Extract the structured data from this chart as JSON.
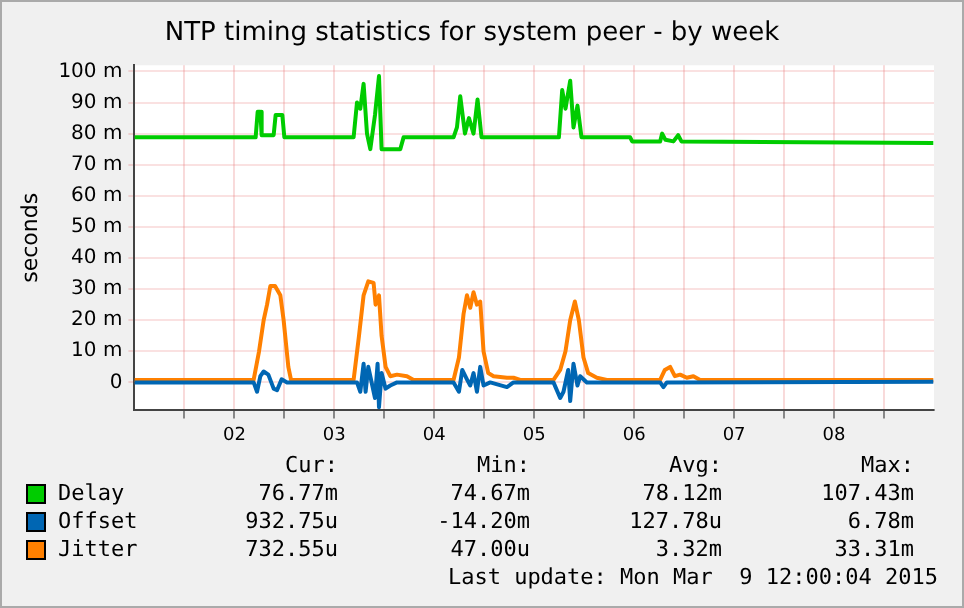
{
  "chart_data": {
    "type": "line",
    "title": "NTP timing statistics for system peer - by week",
    "ylabel": "seconds",
    "xlim": [
      1.5,
      9.5
    ],
    "xticks": [
      {
        "value": 2,
        "label": null
      },
      {
        "value": 2.5,
        "label": "02"
      },
      {
        "value": 3,
        "label": null
      },
      {
        "value": 3.5,
        "label": "03"
      },
      {
        "value": 4,
        "label": null
      },
      {
        "value": 4.5,
        "label": "04"
      },
      {
        "value": 5,
        "label": null
      },
      {
        "value": 5.5,
        "label": "05"
      },
      {
        "value": 6,
        "label": null
      },
      {
        "value": 6.5,
        "label": "06"
      },
      {
        "value": 7,
        "label": null
      },
      {
        "value": 7.5,
        "label": "07"
      },
      {
        "value": 8,
        "label": null
      },
      {
        "value": 8.5,
        "label": "08"
      },
      {
        "value": 9,
        "label": null
      }
    ],
    "ylim": [
      -9,
      102
    ],
    "yticks": [
      {
        "value": 0,
        "label": "0"
      },
      {
        "value": 10,
        "label": "10 m"
      },
      {
        "value": 20,
        "label": "20 m"
      },
      {
        "value": 30,
        "label": "30 m"
      },
      {
        "value": 40,
        "label": "40 m"
      },
      {
        "value": 50,
        "label": "50 m"
      },
      {
        "value": 60,
        "label": "60 m"
      },
      {
        "value": 70,
        "label": "70 m"
      },
      {
        "value": 80,
        "label": "80 m"
      },
      {
        "value": 90,
        "label": "90 m"
      },
      {
        "value": 100,
        "label": "100 m"
      }
    ],
    "grid": true,
    "legend": "bottom",
    "marker": "none",
    "line_style": "solid",
    "series": [
      {
        "name": "Delay",
        "color": "#00cc00",
        "x": [
          1.5,
          2.713,
          2.733,
          2.76,
          2.773,
          2.893,
          2.913,
          2.98,
          3.0,
          3.693,
          3.727,
          3.76,
          3.793,
          3.827,
          3.86,
          3.907,
          3.947,
          3.973,
          4.16,
          4.193,
          4.693,
          4.727,
          4.76,
          4.807,
          4.847,
          4.893,
          4.933,
          4.973,
          5.747,
          5.78,
          5.813,
          5.86,
          5.893,
          5.933,
          5.973,
          6.46,
          6.48,
          6.76,
          6.78,
          6.813,
          6.893,
          6.94,
          6.973,
          9.493
        ],
        "values": [
          78.8,
          78.8,
          87,
          87,
          79.5,
          79.5,
          86,
          86,
          78.8,
          78.8,
          90,
          88,
          96,
          80,
          75,
          86,
          98.5,
          75,
          75,
          78.8,
          78.8,
          82,
          92,
          80,
          85,
          80,
          91,
          78.8,
          78.8,
          94,
          88,
          97,
          82,
          89,
          78.8,
          78.8,
          77.5,
          77.5,
          80,
          78,
          77.5,
          79.5,
          77.5,
          77
        ]
      },
      {
        "name": "Offset",
        "color": "#0066b3",
        "x": [
          1.5,
          2.693,
          2.727,
          2.76,
          2.793,
          2.84,
          2.893,
          2.927,
          2.973,
          3.027,
          3.727,
          3.76,
          3.793,
          3.813,
          3.84,
          3.88,
          3.907,
          3.933,
          3.947,
          3.973,
          4.013,
          4.06,
          4.127,
          4.693,
          4.747,
          4.78,
          4.827,
          4.86,
          4.893,
          4.927,
          4.96,
          4.993,
          5.06,
          5.227,
          5.293,
          5.693,
          5.76,
          5.793,
          5.84,
          5.86,
          5.893,
          5.933,
          5.96,
          6.027,
          6.76,
          6.793,
          6.827,
          9.493
        ],
        "values": [
          0,
          0,
          -3,
          2,
          3.5,
          2.5,
          -2,
          -2.5,
          1,
          0,
          0,
          -3,
          6,
          -3,
          5,
          -1,
          -5,
          6,
          -8,
          3,
          -2,
          -1,
          0,
          0,
          -3,
          4,
          1,
          -1,
          3,
          -3,
          5,
          -1,
          0,
          -1.5,
          0,
          0,
          -5,
          -3,
          4,
          -6,
          6,
          -1,
          2,
          0,
          0,
          -1.5,
          0,
          0.2
        ]
      },
      {
        "name": "Jitter",
        "color": "#ff8000",
        "x": [
          1.5,
          2.693,
          2.747,
          2.793,
          2.827,
          2.86,
          2.907,
          2.96,
          2.993,
          3.04,
          3.067,
          3.693,
          3.747,
          3.793,
          3.84,
          3.893,
          3.913,
          3.947,
          3.973,
          4.013,
          4.06,
          4.127,
          4.227,
          4.293,
          4.693,
          4.747,
          4.793,
          4.827,
          4.86,
          4.893,
          4.927,
          4.96,
          4.993,
          5.04,
          5.093,
          5.227,
          5.293,
          5.36,
          5.693,
          5.76,
          5.813,
          5.86,
          5.907,
          5.947,
          5.993,
          6.04,
          6.127,
          6.227,
          6.76,
          6.807,
          6.86,
          6.907,
          6.96,
          7.027,
          7.093,
          7.16,
          9.493
        ],
        "values": [
          0.8,
          0.8,
          10,
          20,
          25,
          31,
          31,
          28,
          20,
          5,
          0.8,
          0.8,
          15,
          28,
          32.5,
          32,
          25,
          28,
          15,
          5,
          2,
          2.5,
          2,
          0.8,
          0.8,
          8,
          22,
          28,
          24,
          29,
          25,
          26,
          10,
          3,
          2,
          1.5,
          1.5,
          0.8,
          0.8,
          4,
          10,
          20,
          26,
          20,
          8,
          3,
          1.5,
          0.8,
          0.8,
          4,
          5,
          2,
          2.5,
          1.5,
          2,
          0.8,
          0.8
        ]
      }
    ],
    "annotations": [
      "Cur:",
      "Min:",
      "Avg:",
      "Max:",
      "76.77m",
      "74.67m",
      "78.12m",
      "107.43m",
      "932.75u",
      "-14.20m",
      "127.78u",
      "6.78m",
      "732.55u",
      "47.00u",
      "3.32m",
      "33.31m",
      "Last update: Mon Mar  9 12:00:04 2015"
    ]
  }
}
